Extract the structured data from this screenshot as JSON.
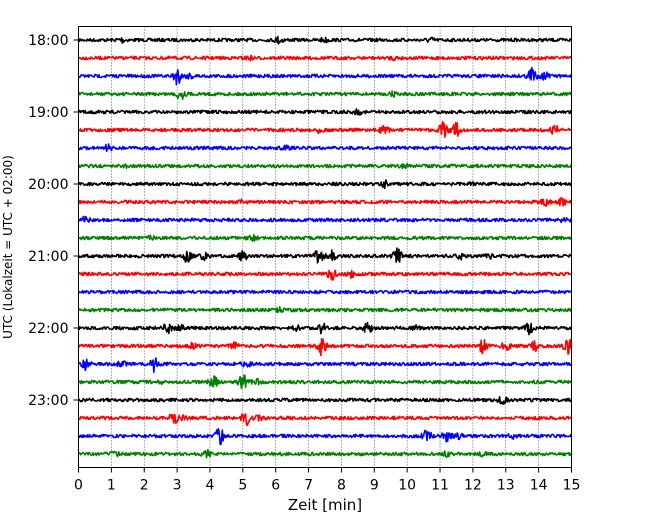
{
  "chart_data": {
    "type": "line",
    "title": "",
    "xlabel": "Zeit  [min]",
    "ylabel": "UTC (Lokalzeit = UTC + 02:00)",
    "xlim": [
      0,
      15
    ],
    "x_ticks": [
      0,
      1,
      2,
      3,
      4,
      5,
      6,
      7,
      8,
      9,
      10,
      11,
      12,
      13,
      14,
      15
    ],
    "x_grid": true,
    "y_tick_labels": [
      "18:00",
      "19:00",
      "20:00",
      "21:00",
      "22:00",
      "23:00"
    ],
    "trace_interval_min": 15,
    "color_cycle": [
      "#000000",
      "#ff0000",
      "#0000ff",
      "#008000"
    ],
    "traces": [
      {
        "start": "18:00",
        "color": "#000000",
        "events": [
          [
            1.3,
            0.25
          ],
          [
            6.1,
            0.35
          ],
          [
            7.5,
            0.2
          ],
          [
            10.7,
            0.2
          ]
        ]
      },
      {
        "start": "18:15",
        "color": "#ff0000",
        "events": [
          [
            5.2,
            0.15
          ],
          [
            9.6,
            0.15
          ]
        ]
      },
      {
        "start": "18:30",
        "color": "#0000ff",
        "events": [
          [
            3.0,
            0.9
          ],
          [
            3.4,
            0.3
          ],
          [
            13.8,
            1.0
          ],
          [
            14.2,
            0.4
          ]
        ]
      },
      {
        "start": "18:45",
        "color": "#008000",
        "events": [
          [
            3.1,
            0.6
          ],
          [
            9.6,
            0.2
          ]
        ]
      },
      {
        "start": "19:00",
        "color": "#000000",
        "events": [
          [
            8.5,
            0.2
          ]
        ]
      },
      {
        "start": "19:15",
        "color": "#ff0000",
        "events": [
          [
            7.3,
            0.2
          ],
          [
            9.3,
            0.4
          ],
          [
            11.1,
            0.9
          ],
          [
            11.5,
            0.7
          ],
          [
            14.5,
            0.5
          ]
        ]
      },
      {
        "start": "19:30",
        "color": "#0000ff",
        "events": [
          [
            0.9,
            0.3
          ],
          [
            6.3,
            0.15
          ]
        ]
      },
      {
        "start": "19:45",
        "color": "#008000",
        "events": [
          [
            1.5,
            0.15
          ],
          [
            9.9,
            0.15
          ]
        ]
      },
      {
        "start": "20:00",
        "color": "#000000",
        "events": [
          [
            9.3,
            0.35
          ],
          [
            12.0,
            0.15
          ]
        ]
      },
      {
        "start": "20:15",
        "color": "#ff0000",
        "events": [
          [
            5.0,
            0.15
          ],
          [
            14.2,
            0.35
          ],
          [
            14.7,
            0.3
          ]
        ]
      },
      {
        "start": "20:30",
        "color": "#0000ff",
        "events": [
          [
            0.2,
            0.3
          ],
          [
            14.8,
            0.3
          ]
        ]
      },
      {
        "start": "20:45",
        "color": "#008000",
        "events": [
          [
            2.2,
            0.25
          ],
          [
            5.3,
            0.25
          ]
        ]
      },
      {
        "start": "21:00",
        "color": "#000000",
        "events": [
          [
            3.3,
            0.6
          ],
          [
            3.8,
            0.5
          ],
          [
            5.0,
            0.5
          ],
          [
            7.3,
            0.9
          ],
          [
            7.7,
            0.5
          ],
          [
            9.7,
            0.8
          ],
          [
            11.6,
            0.3
          ],
          [
            12.5,
            0.2
          ]
        ]
      },
      {
        "start": "21:15",
        "color": "#ff0000",
        "events": [
          [
            7.7,
            0.6
          ],
          [
            8.3,
            0.3
          ]
        ]
      },
      {
        "start": "21:30",
        "color": "#0000ff",
        "events": []
      },
      {
        "start": "21:45",
        "color": "#008000",
        "events": [
          [
            6.1,
            0.2
          ]
        ]
      },
      {
        "start": "22:00",
        "color": "#000000",
        "events": [
          [
            2.7,
            0.6
          ],
          [
            3.1,
            0.3
          ],
          [
            6.6,
            0.25
          ],
          [
            7.4,
            0.5
          ],
          [
            8.8,
            0.5
          ],
          [
            10.3,
            0.3
          ],
          [
            13.7,
            0.9
          ]
        ]
      },
      {
        "start": "22:15",
        "color": "#ff0000",
        "events": [
          [
            3.5,
            0.35
          ],
          [
            4.7,
            0.45
          ],
          [
            7.4,
            1.0
          ],
          [
            12.3,
            0.7
          ],
          [
            13.0,
            0.4
          ],
          [
            13.9,
            0.5
          ],
          [
            14.9,
            0.8
          ]
        ]
      },
      {
        "start": "22:30",
        "color": "#0000ff",
        "events": [
          [
            0.2,
            0.6
          ],
          [
            1.3,
            0.35
          ],
          [
            2.3,
            0.75
          ],
          [
            5.1,
            0.3
          ]
        ]
      },
      {
        "start": "22:45",
        "color": "#008000",
        "events": [
          [
            2.4,
            0.2
          ],
          [
            4.1,
            0.8
          ],
          [
            5.0,
            0.8
          ],
          [
            5.4,
            0.3
          ]
        ]
      },
      {
        "start": "23:00",
        "color": "#000000",
        "events": [
          [
            12.9,
            0.35
          ]
        ]
      },
      {
        "start": "23:15",
        "color": "#ff0000",
        "events": [
          [
            2.9,
            0.5
          ],
          [
            3.2,
            0.2
          ],
          [
            5.1,
            0.7
          ],
          [
            5.5,
            0.2
          ]
        ]
      },
      {
        "start": "23:30",
        "color": "#0000ff",
        "events": [
          [
            4.3,
            0.9
          ],
          [
            10.6,
            0.7
          ],
          [
            11.2,
            0.6
          ],
          [
            11.6,
            0.35
          ],
          [
            13.2,
            0.2
          ]
        ]
      },
      {
        "start": "23:45",
        "color": "#008000",
        "events": [
          [
            1.1,
            0.2
          ],
          [
            3.9,
            0.35
          ],
          [
            11.2,
            0.2
          ],
          [
            12.3,
            0.15
          ]
        ]
      }
    ]
  }
}
